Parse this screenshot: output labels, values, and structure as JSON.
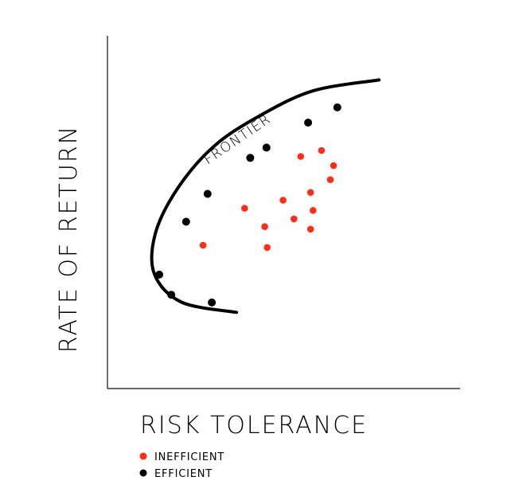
{
  "chart_data": {
    "type": "scatter",
    "title": "",
    "xlabel": "RISK TOLERANCE",
    "ylabel": "RATE OF RETURN",
    "xlim": [
      0,
      100
    ],
    "ylim": [
      0,
      100
    ],
    "grid": false,
    "legend_position": "bottom-left",
    "annotations": [
      {
        "text": "FRONTIER"
      }
    ],
    "frontier": [
      [
        36.6,
        21.6
      ],
      [
        21,
        24.5
      ],
      [
        13.3,
        32.5
      ],
      [
        13.6,
        44
      ],
      [
        20,
        56.9
      ],
      [
        30.2,
        68.7
      ],
      [
        43.1,
        77.3
      ],
      [
        58.3,
        84.4
      ],
      [
        77,
        87.5
      ]
    ],
    "series": [
      {
        "name": "INEFFICIENT",
        "color": "#ff2e17",
        "points": [
          [
            27.1,
            40.6
          ],
          [
            38.9,
            51.1
          ],
          [
            44.6,
            45.9
          ],
          [
            45.3,
            40
          ],
          [
            49.8,
            53.4
          ],
          [
            52.9,
            48.1
          ],
          [
            54.8,
            65.8
          ],
          [
            57.6,
            55.6
          ],
          [
            57.6,
            45.2
          ],
          [
            58.3,
            50.5
          ],
          [
            60.7,
            67.5
          ],
          [
            63.2,
            59.2
          ],
          [
            64.1,
            63.2
          ]
        ]
      },
      {
        "name": "EFFICIENT",
        "color": "#000000",
        "points": [
          [
            14.7,
            32.3
          ],
          [
            18.1,
            26.6
          ],
          [
            22.3,
            47.3
          ],
          [
            28.4,
            55.2
          ],
          [
            29.6,
            24.4
          ],
          [
            40.5,
            65.4
          ],
          [
            45.1,
            68.3
          ],
          [
            56.9,
            75.4
          ],
          [
            65.2,
            79.7
          ]
        ]
      }
    ]
  }
}
